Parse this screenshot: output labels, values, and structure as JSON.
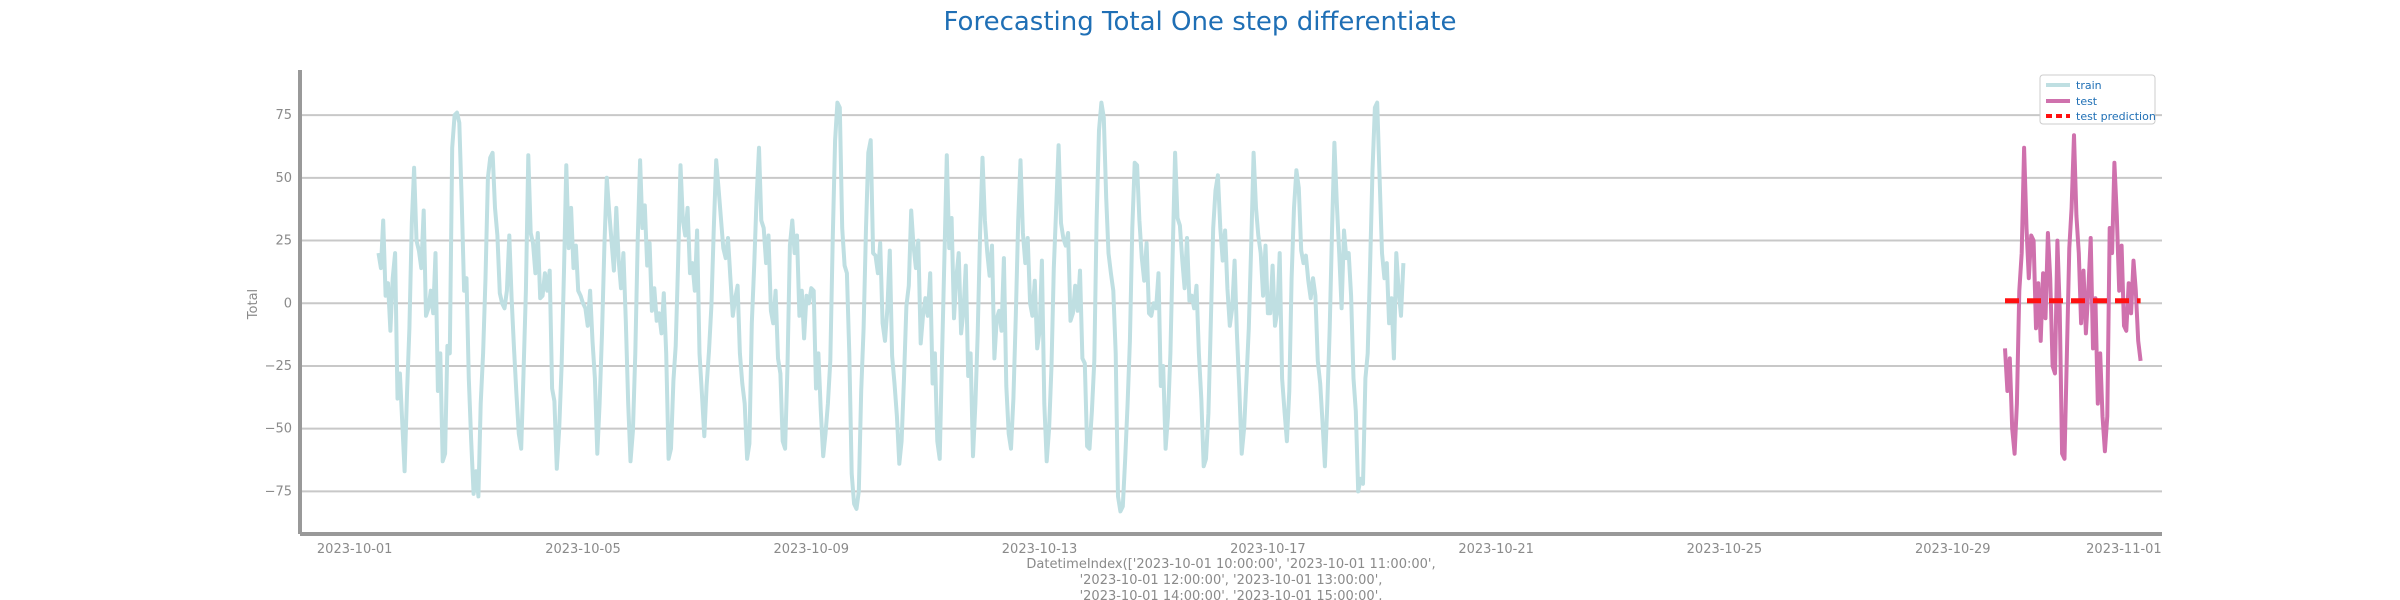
{
  "chart_data": {
    "type": "line",
    "title": "Forecasting Total One step differentiate",
    "ylabel": "Total",
    "xlabel_lines": [
      "DatetimeIndex(['2023-10-01 10:00:00', '2023-10-01 11:00:00',",
      "'2023-10-01 12:00:00', '2023-10-01 13:00:00',",
      "'2023-10-01 14:00:00', '2023-10-01 15:00:00',"
    ],
    "x_range": [
      "2023-09-30T01:00",
      "2023-11-01T16:00"
    ],
    "ylim": [
      -92,
      93
    ],
    "y_ticks": [
      75,
      50,
      25,
      0,
      -25,
      -50,
      -75
    ],
    "y_tick_labels": [
      "75",
      "50",
      "25",
      "0",
      "−25",
      "−50",
      "−75"
    ],
    "x_ticks": [
      "2023-10-01",
      "2023-10-05",
      "2023-10-09",
      "2023-10-13",
      "2023-10-17",
      "2023-10-21",
      "2023-10-25",
      "2023-10-29",
      "2023-11-01"
    ],
    "grid": "horizontal",
    "legend_position": "top-right",
    "series": [
      {
        "name": "train",
        "color": "#bfdfe2",
        "style": "solid",
        "start": "2023-10-01T10:00",
        "step_hours": 1,
        "values": [
          20,
          14,
          33,
          3,
          8,
          -11,
          10,
          20,
          -38,
          -28,
          -48,
          -67,
          -36,
          -10,
          32,
          54,
          25,
          21,
          14,
          37,
          -5,
          -2,
          5,
          -4,
          20,
          -35,
          -20,
          -63,
          -60,
          -17,
          -20,
          62,
          75,
          76,
          72,
          41,
          5,
          10,
          -30,
          -55,
          -76,
          -67,
          -77,
          -40,
          -20,
          10,
          50,
          58,
          60,
          38,
          27,
          4,
          0,
          -2,
          5,
          27,
          2,
          -18,
          -36,
          -52,
          -58,
          -28,
          5,
          59,
          28,
          24,
          12,
          28,
          2,
          3,
          12,
          5,
          13,
          -34,
          -39,
          -66,
          -50,
          -25,
          13,
          55,
          22,
          38,
          14,
          23,
          5,
          3,
          0,
          -2,
          -9,
          5,
          -15,
          -30,
          -60,
          -40,
          -12,
          23,
          50,
          37,
          25,
          13,
          38,
          17,
          6,
          20,
          -7,
          -40,
          -63,
          -51,
          -20,
          25,
          57,
          30,
          39,
          15,
          24,
          -3,
          6,
          -7,
          -4,
          -12,
          4,
          -20,
          -62,
          -58,
          -31,
          -17,
          16,
          55,
          33,
          27,
          38,
          12,
          16,
          5,
          29,
          -20,
          -36,
          -53,
          -33,
          -19,
          -1,
          30,
          57,
          46,
          34,
          22,
          18,
          26,
          10,
          -5,
          2,
          7,
          -20,
          -32,
          -40,
          -62,
          -56,
          -8,
          15,
          42,
          62,
          33,
          30,
          16,
          27,
          -3,
          -8,
          5,
          -22,
          -28,
          -55,
          -58,
          -25,
          23,
          33,
          20,
          27,
          -5,
          5,
          -14,
          3,
          0,
          6,
          5,
          -34,
          -20,
          -43,
          -61,
          -52,
          -40,
          -23,
          25,
          65,
          80,
          78,
          30,
          15,
          12,
          -20,
          -68,
          -80,
          -82,
          -75,
          -35,
          -10,
          30,
          60,
          65,
          20,
          19,
          12,
          24,
          -8,
          -15,
          -2,
          21,
          -21,
          -32,
          -45,
          -64,
          -55,
          -30,
          -1,
          7,
          37,
          23,
          14,
          25,
          -16,
          -5,
          2,
          -5,
          12,
          -32,
          -20,
          -55,
          -62,
          -20,
          18,
          59,
          22,
          34,
          -6,
          10,
          20,
          -12,
          -3,
          15,
          -29,
          -20,
          -61,
          -40,
          -12,
          28,
          58,
          33,
          20,
          11,
          23,
          -22,
          -6,
          -3,
          -11,
          18,
          -33,
          -52,
          -58,
          -38,
          -5,
          33,
          57,
          28,
          16,
          26,
          0,
          -5,
          9,
          -18,
          -11,
          17,
          -40,
          -63,
          -50,
          -25,
          14,
          38,
          63,
          32,
          26,
          23,
          28,
          -7,
          -4,
          7,
          -3,
          13,
          -22,
          -24,
          -57,
          -58,
          -43,
          -23,
          33,
          69,
          80,
          74,
          42,
          20,
          12,
          5,
          -20,
          -77,
          -83,
          -81,
          -62,
          -40,
          -15,
          30,
          56,
          55,
          33,
          18,
          9,
          24,
          -4,
          -5,
          0,
          -2,
          12,
          -33,
          -25,
          -58,
          -45,
          -20,
          20,
          60,
          34,
          31,
          17,
          6,
          26,
          1,
          3,
          -2,
          7,
          -20,
          -38,
          -65,
          -62,
          -44,
          -8,
          30,
          45,
          51,
          30,
          17,
          29,
          6,
          -9,
          -2,
          17,
          -12,
          -34,
          -60,
          -50,
          -30,
          -10,
          23,
          60,
          38,
          27,
          20,
          3,
          23,
          -4,
          -4,
          15,
          -9,
          -3,
          20,
          -30,
          -43,
          -55,
          -35,
          10,
          38,
          53,
          46,
          21,
          16,
          19,
          9,
          2,
          10,
          3,
          -23,
          -32,
          -48,
          -65,
          -40,
          -10,
          30,
          64,
          40,
          20,
          -2,
          29,
          18,
          20,
          3,
          -30,
          -43,
          -75,
          -70,
          -72,
          -30,
          -20,
          15,
          53,
          78,
          80,
          50,
          20,
          10,
          16,
          -8,
          2,
          -22,
          20,
          5,
          -5,
          16
        ]
      },
      {
        "name": "test",
        "color": "#cf71ad",
        "style": "solid",
        "start": "2023-10-29T22:00",
        "step_hours": 1,
        "values": [
          -18,
          -35,
          -22,
          -50,
          -60,
          -40,
          5,
          20,
          62,
          30,
          10,
          27,
          25,
          -10,
          8,
          -15,
          12,
          -6,
          28,
          10,
          -25,
          -28,
          25,
          -2,
          -60,
          -62,
          -20,
          22,
          38,
          67,
          35,
          20,
          -8,
          13,
          -12,
          5,
          26,
          -18,
          2,
          -40,
          -20,
          -45,
          -59,
          -45,
          30,
          20,
          56,
          35,
          5,
          23,
          -9,
          -11,
          8,
          -4,
          17,
          5,
          -15,
          -23
        ]
      },
      {
        "name": "test prediction",
        "color": "#ff1010",
        "style": "dashed",
        "start": "2023-10-29T22:00",
        "step_hours": 1,
        "values": [
          1,
          1,
          1,
          1,
          1,
          1,
          1,
          1,
          1,
          1,
          1,
          1,
          1,
          1,
          1,
          1,
          1,
          1,
          1,
          1,
          1,
          1,
          1,
          1,
          1,
          1,
          1,
          1,
          1,
          1,
          1,
          1,
          1,
          1,
          1,
          1,
          1,
          1,
          1,
          1,
          1,
          1,
          1,
          1,
          1,
          1,
          1,
          1,
          1,
          1,
          1,
          1,
          1,
          1,
          1,
          1,
          1,
          1
        ]
      }
    ]
  }
}
